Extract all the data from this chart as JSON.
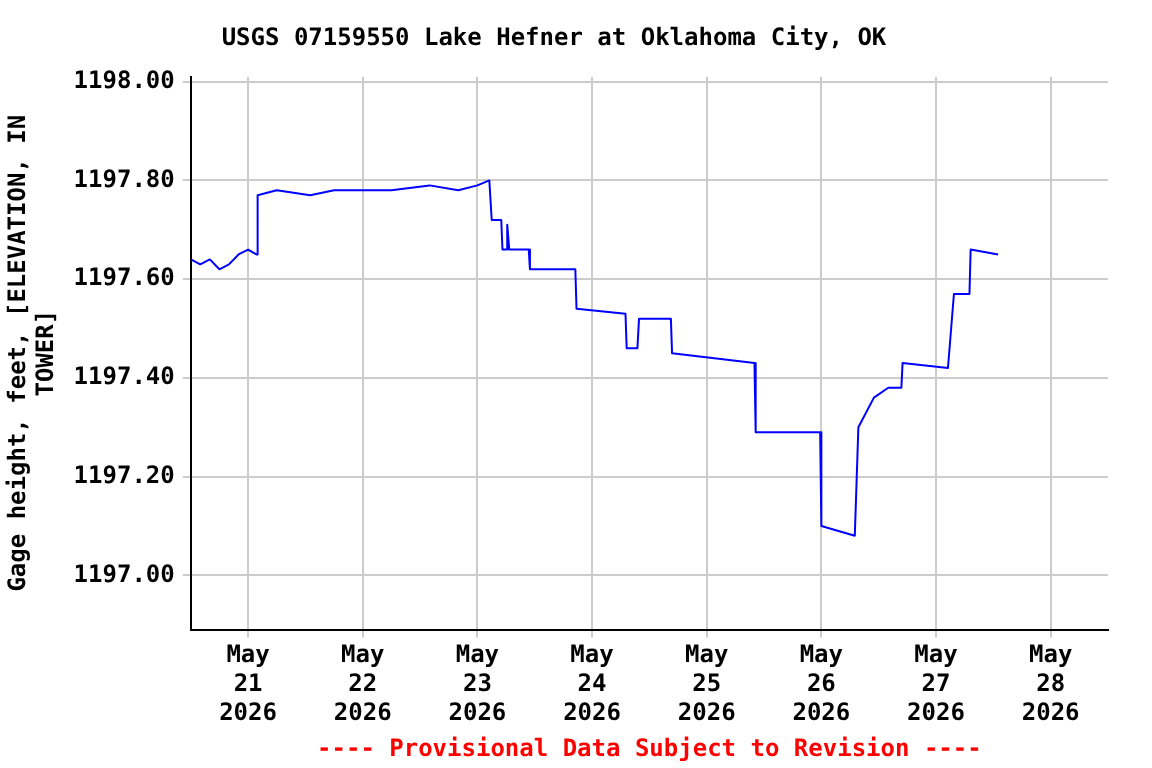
{
  "chart_data": {
    "type": "line",
    "title": "USGS 07159550 Lake Hefner at Oklahoma City, OK",
    "ylabel": "Gage height, feet, [ELEVATION, IN TOWER]",
    "annotations": [
      "---- Provisional Data Subject to Revision ----"
    ],
    "xlim": [
      "2026-05-20T12:00",
      "2026-05-28T12:00"
    ],
    "xticks": [
      {
        "value": "2026-05-21",
        "label": "May 21 2026"
      },
      {
        "value": "2026-05-22",
        "label": "May 22 2026"
      },
      {
        "value": "2026-05-23",
        "label": "May 23 2026"
      },
      {
        "value": "2026-05-24",
        "label": "May 24 2026"
      },
      {
        "value": "2026-05-25",
        "label": "May 25 2026"
      },
      {
        "value": "2026-05-26",
        "label": "May 26 2026"
      },
      {
        "value": "2026-05-27",
        "label": "May 27 2026"
      },
      {
        "value": "2026-05-28",
        "label": "May 28 2026"
      }
    ],
    "ylim": [
      1196.89,
      1198.01
    ],
    "yticks": [
      {
        "value": 1197,
        "label": "1197.00"
      },
      {
        "value": 1197.2,
        "label": "1197.20"
      },
      {
        "value": 1197.4,
        "label": "1197.40"
      },
      {
        "value": 1197.6,
        "label": "1197.60"
      },
      {
        "value": 1197.8,
        "label": "1197.80"
      },
      {
        "value": 1198,
        "label": "1198.00"
      }
    ],
    "grid": true,
    "legend": false,
    "series": [
      {
        "color": "#0000ff",
        "x": [
          "2026-05-20T12:00",
          "2026-05-20T14:00",
          "2026-05-20T16:00",
          "2026-05-20T18:00",
          "2026-05-20T20:00",
          "2026-05-20T22:00",
          "2026-05-21T00:00",
          "2026-05-21T01:45",
          "2026-05-21T02:00",
          "2026-05-21T06:00",
          "2026-05-21T13:00",
          "2026-05-21T18:00",
          "2026-05-22T06:00",
          "2026-05-22T14:00",
          "2026-05-22T20:00",
          "2026-05-23T00:00",
          "2026-05-23T02:30",
          "2026-05-23T03:00",
          "2026-05-23T05:00",
          "2026-05-23T05:15",
          "2026-05-23T06:00",
          "2026-05-23T06:15",
          "2026-05-23T06:40",
          "2026-05-23T10:45",
          "2026-05-23T11:00",
          "2026-05-23T20:30",
          "2026-05-23T20:45",
          "2026-05-24T07:00",
          "2026-05-24T07:15",
          "2026-05-24T09:30",
          "2026-05-24T09:50",
          "2026-05-24T16:30",
          "2026-05-24T16:45",
          "2026-05-25T10:00",
          "2026-05-25T10:15",
          "2026-05-25T23:45",
          "2026-05-26T00:00",
          "2026-05-26T07:00",
          "2026-05-26T07:45",
          "2026-05-26T11:00",
          "2026-05-26T14:00",
          "2026-05-26T16:45",
          "2026-05-26T17:00",
          "2026-05-27T02:30",
          "2026-05-27T03:45",
          "2026-05-27T07:00",
          "2026-05-27T07:15",
          "2026-05-27T13:00"
        ],
        "values": [
          1197.64,
          1197.63,
          1197.64,
          1197.62,
          1197.63,
          1197.65,
          1197.66,
          1197.65,
          1197.77,
          1197.78,
          1197.77,
          1197.78,
          1197.78,
          1197.79,
          1197.78,
          1197.79,
          1197.8,
          1197.72,
          1197.72,
          1197.66,
          1197.66,
          1197.71,
          1197.66,
          1197.66,
          1197.62,
          1197.62,
          1197.54,
          1197.53,
          1197.46,
          1197.46,
          1197.52,
          1197.52,
          1197.45,
          1197.43,
          1197.29,
          1197.29,
          1197.1,
          1197.08,
          1197.3,
          1197.36,
          1197.38,
          1197.38,
          1197.43,
          1197.42,
          1197.57,
          1197.57,
          1197.66,
          1197.65
        ]
      }
    ]
  }
}
